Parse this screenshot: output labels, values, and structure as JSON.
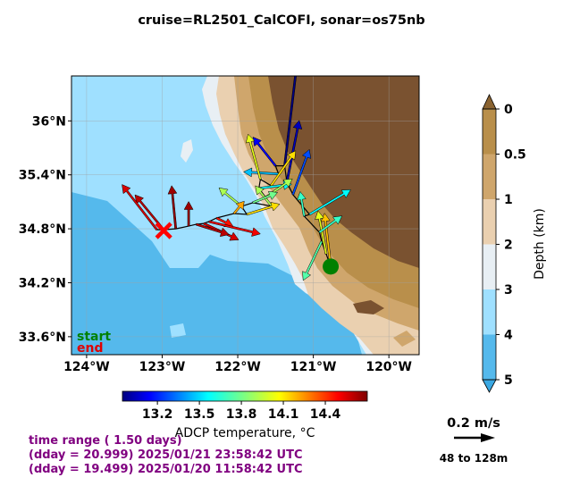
{
  "title": "cruise=RL2501_CalCOFI,   sonar=os75nb",
  "chart_data": {
    "type": "map",
    "map": {
      "lon_range": [
        -124.2,
        -119.6
      ],
      "lat_range": [
        33.4,
        36.5
      ],
      "lon_ticks": [
        -124,
        -123,
        -122,
        -121,
        -120
      ],
      "lon_tick_labels": [
        "124°W",
        "123°W",
        "122°W",
        "121°W",
        "120°W"
      ],
      "lat_ticks": [
        33.6,
        34.2,
        34.8,
        35.4,
        36.0
      ],
      "lat_tick_labels": [
        "33.6°N",
        "34.2°N",
        "34.8°N",
        "35.4°N",
        "36°N"
      ]
    },
    "depth_colorbar": {
      "label": "Depth (km)",
      "ticks": [
        "0",
        "0.5",
        "1",
        "2",
        "3",
        "4",
        "5"
      ],
      "colors": [
        "#b98f4b",
        "#cfa66c",
        "#ead0b0",
        "#e8eff4",
        "#9fe0ff",
        "#55b9ec"
      ]
    },
    "temperature_colorbar": {
      "label": "ADCP temperature, °C",
      "range": [
        12.95,
        14.7
      ],
      "ticks": [
        13.2,
        13.5,
        13.8,
        14.1,
        14.4
      ],
      "tick_labels": [
        "13.2",
        "13.5",
        "13.8",
        "14.1",
        "14.4"
      ]
    },
    "track": {
      "start_label": "start",
      "end_label": "end",
      "start": {
        "lon": -120.77,
        "lat": 34.38
      },
      "end": {
        "lon": -122.98,
        "lat": 34.78
      }
    },
    "vectors": [
      {
        "lon": -120.77,
        "lat": 34.38,
        "u": -0.03,
        "v": 0.26,
        "t": 14.15
      },
      {
        "lon": -120.83,
        "lat": 34.52,
        "u": -0.04,
        "v": 0.21,
        "t": 14.0
      },
      {
        "lon": -120.89,
        "lat": 34.66,
        "u": -0.09,
        "v": -0.19,
        "t": 13.75
      },
      {
        "lon": -120.92,
        "lat": 34.76,
        "u": 0.11,
        "v": 0.08,
        "t": 13.7
      },
      {
        "lon": -121.12,
        "lat": 34.94,
        "u": -0.02,
        "v": 0.12,
        "t": 13.7
      },
      {
        "lon": -121.05,
        "lat": 34.96,
        "u": 0.2,
        "v": 0.12,
        "t": 13.6
      },
      {
        "lon": -121.27,
        "lat": 35.18,
        "u": 0.08,
        "v": 0.22,
        "t": 13.3
      },
      {
        "lon": -121.35,
        "lat": 35.32,
        "u": 0.06,
        "v": 0.3,
        "t": 13.05
      },
      {
        "lon": -121.38,
        "lat": 35.5,
        "u": 0.07,
        "v": 0.58,
        "t": 12.95
      },
      {
        "lon": -121.5,
        "lat": 35.5,
        "u": -0.11,
        "v": 0.14,
        "t": 13.15
      },
      {
        "lon": -121.46,
        "lat": 35.41,
        "u": -0.17,
        "v": 0.01,
        "t": 13.5
      },
      {
        "lon": -121.56,
        "lat": 35.28,
        "u": 0.12,
        "v": 0.17,
        "t": 14.1
      },
      {
        "lon": -121.7,
        "lat": 35.35,
        "u": -0.06,
        "v": 0.22,
        "t": 14.0
      },
      {
        "lon": -121.72,
        "lat": 35.25,
        "u": 0.16,
        "v": 0.02,
        "t": 13.6
      },
      {
        "lon": -121.63,
        "lat": 35.15,
        "u": 0.13,
        "v": 0.09,
        "t": 13.9
      },
      {
        "lon": -121.55,
        "lat": 35.05,
        "u": -0.08,
        "v": 0.1,
        "t": 13.9
      },
      {
        "lon": -121.8,
        "lat": 35.09,
        "u": 0.12,
        "v": 0.05,
        "t": 13.8
      },
      {
        "lon": -121.95,
        "lat": 35.05,
        "u": -0.11,
        "v": 0.09,
        "t": 13.9
      },
      {
        "lon": -121.88,
        "lat": 34.96,
        "u": 0.16,
        "v": 0.05,
        "t": 14.1
      },
      {
        "lon": -122.05,
        "lat": 34.97,
        "u": 0.05,
        "v": 0.06,
        "t": 14.2
      },
      {
        "lon": -122.28,
        "lat": 34.92,
        "u": 0.08,
        "v": -0.04,
        "t": 14.45
      },
      {
        "lon": -122.38,
        "lat": 34.88,
        "u": 0.25,
        "v": -0.06,
        "t": 14.5
      },
      {
        "lon": -122.45,
        "lat": 34.86,
        "u": 0.17,
        "v": -0.08,
        "t": 14.55
      },
      {
        "lon": -122.55,
        "lat": 34.85,
        "u": 0.16,
        "v": -0.05,
        "t": 14.6
      },
      {
        "lon": -122.65,
        "lat": 34.83,
        "u": 0.0,
        "v": 0.12,
        "t": 14.65
      },
      {
        "lon": -122.82,
        "lat": 34.8,
        "u": -0.02,
        "v": 0.21,
        "t": 14.65
      },
      {
        "lon": -122.98,
        "lat": 34.79,
        "u": -0.14,
        "v": 0.17,
        "t": 14.6
      },
      {
        "lon": -123.07,
        "lat": 34.79,
        "u": -0.17,
        "v": 0.22,
        "t": 14.55
      }
    ],
    "reference_vector": {
      "speed_label": "0.2 m/s",
      "speed": 0.2,
      "depth_label": "48 to 128m"
    }
  },
  "time_info": {
    "range": "time range ( 1.50 days)",
    "end_time": "(dday = 20.999) 2025/01/21 23:58:42 UTC",
    "start_time": "(dday = 19.499) 2025/01/20 11:58:42 UTC"
  }
}
